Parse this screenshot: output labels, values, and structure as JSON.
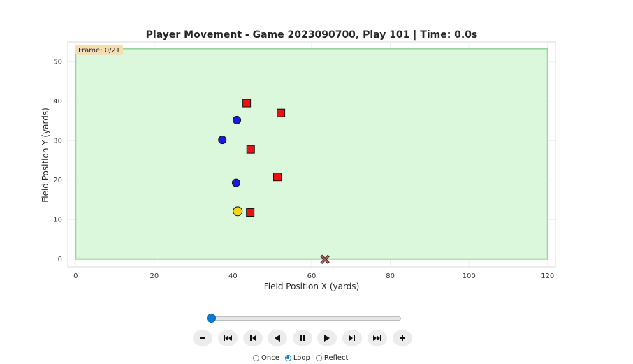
{
  "chart_data": {
    "type": "scatter",
    "title": "Player Movement - Game 2023090700, Play 101 | Time: 0.0s",
    "xlabel": "Field Position X (yards)",
    "ylabel": "Field Position Y (yards)",
    "xlim": [
      -2,
      122
    ],
    "ylim": [
      -2,
      55
    ],
    "xticks": [
      0,
      20,
      40,
      60,
      80,
      100,
      120
    ],
    "yticks": [
      0,
      10,
      20,
      30,
      40,
      50
    ],
    "grid": true,
    "field": {
      "x": [
        0,
        120
      ],
      "y": [
        0,
        53.3
      ],
      "fill": "#dbf7dc",
      "edge": "#9ad39b"
    },
    "frame_label": "Frame: 0/21",
    "series": [
      {
        "marker": "square",
        "color": "#ee1111",
        "points": [
          [
            43.5,
            39.5
          ],
          [
            52.2,
            37.0
          ],
          [
            44.5,
            27.8
          ],
          [
            51.3,
            20.8
          ],
          [
            44.4,
            11.8
          ]
        ]
      },
      {
        "marker": "circle",
        "color": "#1a1ae6",
        "points": [
          [
            41.0,
            35.2
          ],
          [
            37.3,
            30.2
          ],
          [
            40.8,
            19.3
          ]
        ]
      },
      {
        "marker": "circle-large",
        "color": "#f5d516",
        "points": [
          [
            41.2,
            12.1
          ]
        ]
      },
      {
        "marker": "x",
        "color": "#a8605a",
        "points": [
          [
            63.4,
            -0.1
          ]
        ]
      }
    ]
  },
  "controls": {
    "slider_fraction": 0.0,
    "buttons": [
      "decrease",
      "first",
      "step-back",
      "play-reverse",
      "pause",
      "play",
      "step-forward",
      "last",
      "increase"
    ],
    "modes": [
      {
        "label": "Once",
        "checked": false
      },
      {
        "label": "Loop",
        "checked": true
      },
      {
        "label": "Reflect",
        "checked": false
      }
    ],
    "accent": "#0b7ad1"
  }
}
